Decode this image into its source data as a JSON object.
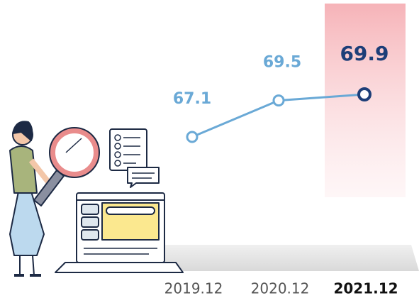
{
  "chart_data": {
    "type": "line",
    "categories": [
      "2019.12",
      "2020.12",
      "2021.12"
    ],
    "values": [
      67.1,
      69.5,
      69.9
    ],
    "color": "#6aa9d6",
    "colors": [
      "#6aa9d6",
      "#6aa9d6",
      "#1d3e78"
    ]
  }
}
